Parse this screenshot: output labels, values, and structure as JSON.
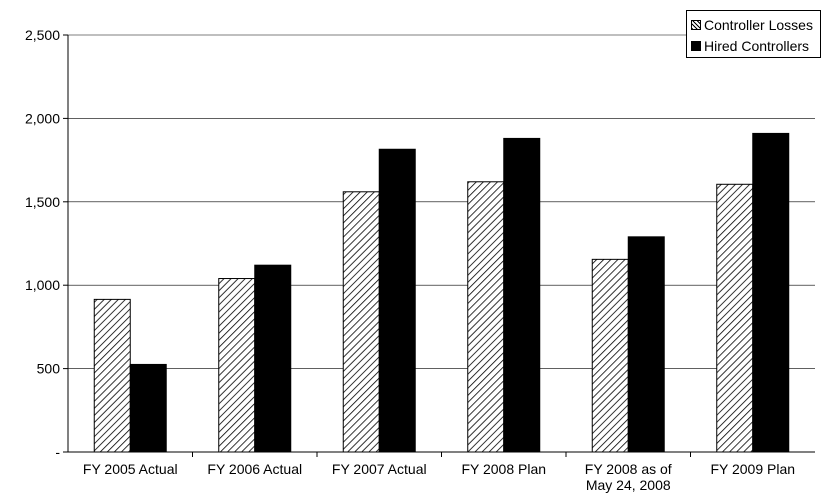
{
  "chart_data": {
    "type": "bar",
    "categories": [
      "FY 2005 Actual",
      "FY 2006 Actual",
      "FY 2007 Actual",
      "FY 2008 Plan",
      "FY 2008 as of\nMay 24, 2008",
      "FY 2009 Plan"
    ],
    "series": [
      {
        "name": "Controller Losses",
        "values": [
          915,
          1040,
          1560,
          1620,
          1155,
          1605
        ],
        "pattern": "hatched"
      },
      {
        "name": "Hired Controllers",
        "values": [
          525,
          1120,
          1815,
          1880,
          1290,
          1910
        ],
        "pattern": "solid"
      }
    ],
    "y_tick_labels": [
      "-",
      "500",
      "1,000",
      "1,500",
      "2,000",
      "2,500"
    ],
    "y_ticks": [
      0,
      500,
      1000,
      1500,
      2000,
      2500
    ],
    "ylim": [
      0,
      2500
    ],
    "grid": true,
    "legend_position": "top-right",
    "colors": {
      "solid": "#000000",
      "hatch": "#000000",
      "background": "#ffffff",
      "grid": "#000000"
    }
  }
}
